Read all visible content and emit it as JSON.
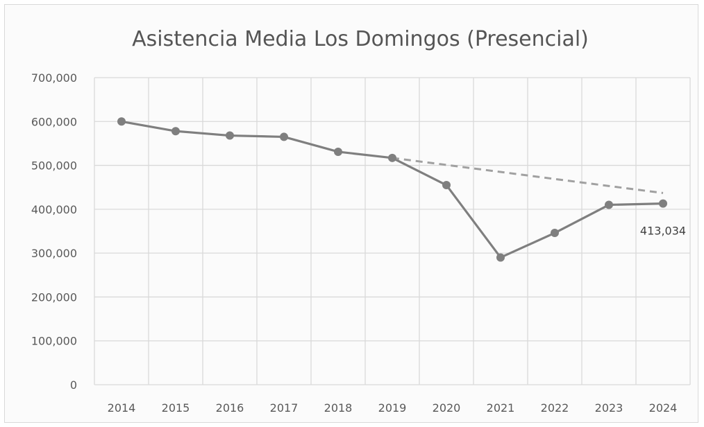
{
  "chart_data": {
    "type": "line",
    "title": "Asistencia Media Los Domingos (Presencial)",
    "xlabel": "",
    "ylabel": "",
    "categories": [
      "2014",
      "2015",
      "2016",
      "2017",
      "2018",
      "2019",
      "2020",
      "2021",
      "2022",
      "2023",
      "2024"
    ],
    "y_ticks": [
      "0",
      "100,000",
      "200,000",
      "300,000",
      "400,000",
      "500,000",
      "600,000",
      "700,000"
    ],
    "ylim": [
      0,
      700000
    ],
    "grid": true,
    "series": [
      {
        "values": [
          600000,
          578000,
          568000,
          565000,
          531000,
          517000,
          455000,
          290000,
          346000,
          410000,
          413034
        ],
        "line_color": "#7f7f7f",
        "marker_color": "#7f7f7f",
        "data_labels": [
          null,
          null,
          null,
          null,
          null,
          null,
          null,
          null,
          null,
          null,
          "413,034"
        ]
      },
      {
        "style": "dashed",
        "line_color": "#a0a0a0",
        "x": [
          "2019",
          "2024"
        ],
        "values": [
          517000,
          437000
        ]
      }
    ]
  }
}
